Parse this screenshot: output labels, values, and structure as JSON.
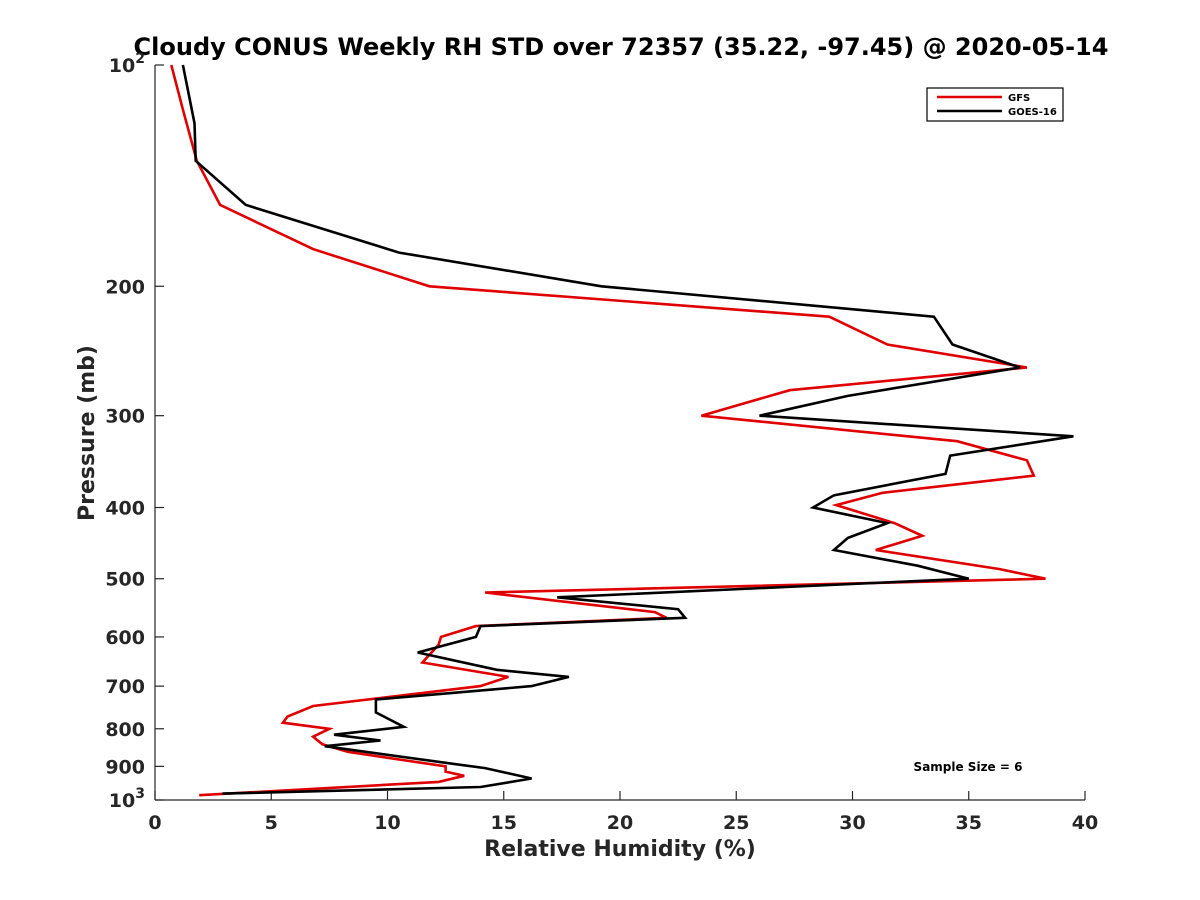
{
  "chart_data": {
    "type": "line",
    "title": "Cloudy CONUS Weekly RH STD over 72357 (35.22, -97.45) @ 2020-05-14",
    "xlabel": "Relative Humidity (%)",
    "ylabel": "Pressure (mb)",
    "xlim": [
      0,
      40
    ],
    "ylim": [
      100,
      1000
    ],
    "y_scale": "log",
    "y_reversed": true,
    "grid": false,
    "legend_position": "top-right",
    "x_ticks": [
      "0",
      "5",
      "10",
      "15",
      "20",
      "25",
      "30",
      "35",
      "40"
    ],
    "y_ticks": [
      {
        "value": 100,
        "base": "10",
        "exp": "2"
      },
      {
        "value": 200,
        "label": "200"
      },
      {
        "value": 300,
        "label": "300"
      },
      {
        "value": 400,
        "label": "400"
      },
      {
        "value": 500,
        "label": "500"
      },
      {
        "value": 600,
        "label": "600"
      },
      {
        "value": 700,
        "label": "700"
      },
      {
        "value": 800,
        "label": "800"
      },
      {
        "value": 900,
        "label": "900"
      },
      {
        "value": 1000,
        "base": "10",
        "exp": "3"
      }
    ],
    "series": [
      {
        "name": "GFS",
        "color": "#e00000",
        "points": [
          [
            0.7,
            100
          ],
          [
            1.2,
            115
          ],
          [
            1.8,
            135
          ],
          [
            2.8,
            155
          ],
          [
            6.8,
            178
          ],
          [
            11.8,
            200
          ],
          [
            29.0,
            220
          ],
          [
            31.5,
            240
          ],
          [
            37.5,
            258
          ],
          [
            27.3,
            277
          ],
          [
            23.5,
            300
          ],
          [
            34.5,
            325
          ],
          [
            37.5,
            345
          ],
          [
            37.8,
            362
          ],
          [
            31.3,
            382
          ],
          [
            29.3,
            397
          ],
          [
            31.8,
            420
          ],
          [
            33.0,
            437
          ],
          [
            31.0,
            457
          ],
          [
            36.3,
            485
          ],
          [
            38.3,
            500
          ],
          [
            14.2,
            522
          ],
          [
            21.5,
            555
          ],
          [
            22.0,
            565
          ],
          [
            13.8,
            580
          ],
          [
            12.3,
            600
          ],
          [
            12.2,
            615
          ],
          [
            11.5,
            650
          ],
          [
            15.2,
            680
          ],
          [
            14.0,
            700
          ],
          [
            6.8,
            745
          ],
          [
            5.7,
            770
          ],
          [
            5.5,
            785
          ],
          [
            7.5,
            800
          ],
          [
            6.8,
            820
          ],
          [
            7.2,
            840
          ],
          [
            8.3,
            860
          ],
          [
            12.5,
            900
          ],
          [
            12.5,
            915
          ],
          [
            13.3,
            927
          ],
          [
            12.2,
            945
          ],
          [
            1.9,
            985
          ]
        ]
      },
      {
        "name": "GOES-16",
        "color": "#000000",
        "points": [
          [
            1.2,
            100
          ],
          [
            1.7,
            120
          ],
          [
            1.75,
            135
          ],
          [
            3.9,
            155
          ],
          [
            10.5,
            180
          ],
          [
            19.2,
            200
          ],
          [
            33.5,
            220
          ],
          [
            34.3,
            240
          ],
          [
            37.2,
            258
          ],
          [
            29.8,
            282
          ],
          [
            26.0,
            300
          ],
          [
            39.5,
            320
          ],
          [
            34.2,
            340
          ],
          [
            34.0,
            360
          ],
          [
            29.2,
            385
          ],
          [
            28.3,
            400
          ],
          [
            31.5,
            420
          ],
          [
            29.8,
            440
          ],
          [
            29.2,
            457
          ],
          [
            32.8,
            480
          ],
          [
            35.0,
            500
          ],
          [
            17.3,
            530
          ],
          [
            22.5,
            550
          ],
          [
            22.8,
            565
          ],
          [
            14.0,
            580
          ],
          [
            13.8,
            600
          ],
          [
            11.3,
            630
          ],
          [
            14.7,
            665
          ],
          [
            17.8,
            680
          ],
          [
            16.2,
            700
          ],
          [
            9.5,
            730
          ],
          [
            9.5,
            760
          ],
          [
            10.7,
            795
          ],
          [
            7.7,
            815
          ],
          [
            9.7,
            830
          ],
          [
            7.3,
            845
          ],
          [
            12.5,
            890
          ],
          [
            14.2,
            905
          ],
          [
            16.2,
            935
          ],
          [
            14.0,
            960
          ],
          [
            2.9,
            980
          ]
        ]
      }
    ],
    "legend": [
      "GFS",
      "GOES-16"
    ],
    "annotations": [
      {
        "text": "Sample Size = 6"
      }
    ]
  }
}
